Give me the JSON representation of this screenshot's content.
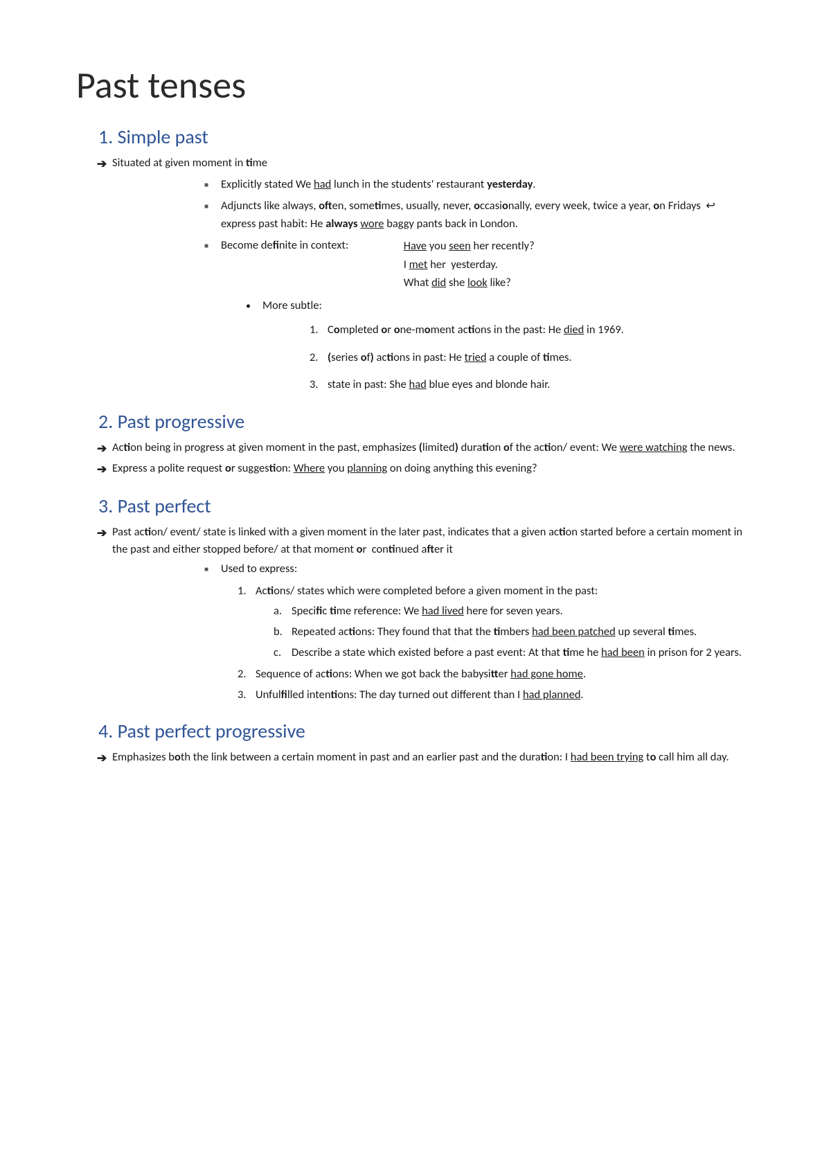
{
  "title": "Past tenses",
  "sections": {
    "s1": {
      "heading": "1. Simple past",
      "arrow1": "Situated at given moment in <b>ti</b>me",
      "sq1": "Explicitly stated We <u>had</u> lunch in the students' restaurant <b>yesterday</b>.",
      "sq2": "Adjuncts like always, <b>oft</b>en, some<b>ti</b>mes, usually, never, <b>o</b>ccasi<b>o</b>nally, every week, twice a year, <b>o</b>n Fridays &nbsp;&#8617;&nbsp; express past habit: He <b>always</b> <u>wore</u> baggy pants back in London.",
      "sq3_left": "Become de<b>fi</b>nite in context:",
      "sq3_r1": "<u>Have</u> you <u>seen</u> her recently?",
      "sq3_r2": "I <u>met</u> her&nbsp; yesterday.",
      "sq3_r3": "What <u>did</u> she <u>look</u> like?",
      "disc1": "More subtle:",
      "num1": "C<b>o</b>mpleted <b>o</b>r <b>o</b>ne-m<b>o</b>ment ac<b>ti</b>ons in the past: He <u>died</u> in 1969.",
      "num2": "<b>(</b>series <b>o</b>f<b>)</b> ac<b>ti</b>ons in past: He <u>tried</u> a couple of <b>ti</b>mes.",
      "num3": "state in past: She <u>had</u> blue eyes and blonde hair."
    },
    "s2": {
      "heading": "2. Past progressive",
      "arrow1": "Ac<b>ti</b>on being in progress at given moment in the past, emphasizes <b>(</b>limited<b>)</b> dura<b>ti</b>on <b>o</b>f the ac<b>ti</b>on/ event: We <u>were watching</u> the news.",
      "arrow2": "Express a polite request <b>o</b>r sugges<b>ti</b>on: <u>Where</u> you <u>planning</u> on doing anything this evening?"
    },
    "s3": {
      "heading": "3. Past perfect",
      "arrow1": "Past ac<b>ti</b>on/ event/ state is linked with a given moment in the later past, indicates that a given ac<b>ti</b>on started before a certain moment in the past and either stopped before/ at that moment <b>o</b>r&nbsp; con<b>ti</b>nued a<b>ft</b>er it",
      "sq1": "Used to express:",
      "n1": "Ac<b>ti</b>ons/ states which were completed before a given moment in the past:",
      "n1a": "Speci<b>fi</b>c <b>ti</b>me reference: We <u>had lived</u> here for seven years.",
      "n1b": "Repeated ac<b>ti</b>ons: They found that that the <b>ti</b>mbers <u>had been patched</u> up several <b>ti</b>mes.",
      "n1c": "Describe a state which existed before a past event: At that <b>ti</b>me he <u>had been</u> in prison for 2 years.",
      "n2": "Sequence of ac<b>ti</b>ons: When we got back the babysi<b>tt</b>er <u>had gone home</u>.",
      "n3": "Unful<b>fi</b>lled inten<b>ti</b>ons: The day turned out different than I <u>had planned</u>."
    },
    "s4": {
      "heading": "4. Past perfect progressive",
      "arrow1": "Emphasizes b<b>o</b>th the link between a certain moment in past and an earlier past and the dura<b>ti</b>on: I <u>had been trying</u> t<b>o</b> call him all day."
    }
  },
  "labels": {
    "one": "1.",
    "two": "2.",
    "three": "3.",
    "a": "a.",
    "b": "b.",
    "c": "c."
  }
}
